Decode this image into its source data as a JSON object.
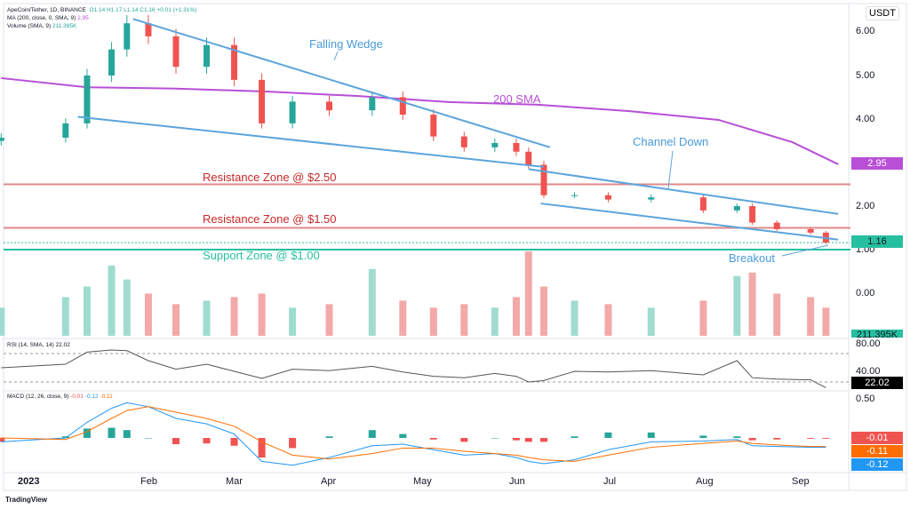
{
  "header": {
    "symbol": "ApeCoin/Tether, 1D, BINANCE",
    "o": "O1.14",
    "h": "H1.17",
    "l": "L1.14",
    "c": "C1.16",
    "chg": "+0.01 (+1.31%)",
    "ma": "MA (200, close, 0, SMA, 9)",
    "ma_val": "2.95",
    "vol": "Volume (SMA, 9)",
    "vol_val": "211.395K",
    "rsi": "RSI (14, SMA, 14)",
    "rsi_val": "22.02",
    "macd": "MACD (12, 26, close, 9)",
    "macd_h": "-0.01",
    "macd_m": "-0.12",
    "macd_s": "-0.11"
  },
  "currency": "USDT",
  "price_axis": [
    "6.00",
    "5.00",
    "4.00",
    "2.00",
    "1.00",
    "0.00"
  ],
  "rsi_axis": [
    "80.00",
    "40.00"
  ],
  "macd_axis": [
    "0.50"
  ],
  "tags": {
    "sma": "2.95",
    "price": "1.16",
    "volume": "211.395K",
    "rsi": "22.02",
    "macd_h": "-0.01",
    "macd_s": "-0.11",
    "macd_m": "-0.12"
  },
  "months": [
    "2023",
    "Feb",
    "Mar",
    "Apr",
    "May",
    "Jun",
    "Jul",
    "Aug",
    "Sep"
  ],
  "annotations": {
    "wedge": "Falling Wedge",
    "sma": "200 SMA",
    "channel": "Channel Down",
    "res250": "Resistance Zone @ $2.50",
    "res150": "Resistance Zone @ $1.50",
    "sup100": "Support Zone @ $1.00",
    "breakout": "Breakout"
  },
  "footer": "TradingView",
  "colors": {
    "up": "#26a69a",
    "down": "#ef5350",
    "sma": "#b84fd6",
    "trend": "#5ba4dc",
    "resistance": "#e08a8a",
    "support": "#26bfa0",
    "macd": "#2196f3",
    "signal": "#ff6d00"
  },
  "chart_data": {
    "type": "candlestick",
    "dates": [
      "2022-12-15",
      "2023-01-05",
      "2023-01-12",
      "2023-01-20",
      "2023-01-25",
      "2023-02-01",
      "2023-02-10",
      "2023-02-20",
      "2023-03-01",
      "2023-03-10",
      "2023-03-20",
      "2023-04-01",
      "2023-04-15",
      "2023-04-25",
      "2023-05-05",
      "2023-05-15",
      "2023-05-25",
      "2023-06-01",
      "2023-06-05",
      "2023-06-10",
      "2023-06-20",
      "2023-07-01",
      "2023-07-15",
      "2023-08-01",
      "2023-08-12",
      "2023-08-17",
      "2023-08-25",
      "2023-09-05",
      "2023-09-10"
    ],
    "close": [
      3.57,
      3.9,
      5.0,
      5.6,
      6.2,
      5.9,
      5.2,
      5.7,
      4.9,
      3.9,
      4.4,
      4.2,
      4.5,
      4.1,
      3.6,
      3.35,
      3.45,
      3.25,
      2.95,
      2.25,
      2.25,
      2.15,
      2.2,
      1.9,
      2.0,
      1.62,
      1.47,
      1.39,
      1.16
    ],
    "volume": [
      40,
      55,
      70,
      100,
      80,
      60,
      45,
      50,
      55,
      60,
      40,
      45,
      95,
      50,
      40,
      45,
      40,
      55,
      120,
      70,
      50,
      45,
      40,
      50,
      85,
      90,
      60,
      55,
      40
    ],
    "rsi": [
      50,
      55,
      72,
      75,
      74,
      60,
      48,
      55,
      45,
      35,
      48,
      46,
      52,
      44,
      38,
      36,
      42,
      38,
      30,
      32,
      45,
      44,
      46,
      40,
      60,
      36,
      34,
      33,
      22
    ],
    "macd": [
      -0.05,
      0.0,
      0.2,
      0.38,
      0.45,
      0.4,
      0.25,
      0.18,
      0.05,
      -0.3,
      -0.35,
      -0.25,
      -0.1,
      -0.08,
      -0.15,
      -0.22,
      -0.2,
      -0.25,
      -0.3,
      -0.33,
      -0.28,
      -0.15,
      -0.05,
      -0.04,
      -0.02,
      -0.1,
      -0.11,
      -0.12,
      -0.12
    ],
    "signal": [
      0.0,
      -0.02,
      0.08,
      0.25,
      0.35,
      0.4,
      0.33,
      0.25,
      0.15,
      -0.05,
      -0.22,
      -0.27,
      -0.2,
      -0.13,
      -0.13,
      -0.17,
      -0.2,
      -0.22,
      -0.25,
      -0.28,
      -0.3,
      -0.22,
      -0.12,
      -0.07,
      -0.04,
      -0.07,
      -0.09,
      -0.11,
      -0.11
    ],
    "sma200": {
      "dates": [
        "2022-12-15",
        "2023-01-12",
        "2023-02-10",
        "2023-03-12",
        "2023-04-10",
        "2023-05-10",
        "2023-06-08",
        "2023-07-08",
        "2023-08-06",
        "2023-08-30",
        "2023-09-14"
      ],
      "values": [
        4.94,
        4.73,
        4.7,
        4.63,
        4.53,
        4.39,
        4.33,
        4.18,
        3.98,
        3.47,
        2.96
      ]
    },
    "trendlines": [
      {
        "name": "Falling Wedge",
        "from": [
          "2023-01-27",
          6.3
        ],
        "to": [
          "2023-06-12",
          3.35
        ]
      },
      {
        "from": [
          "2023-01-09",
          4.05
        ],
        "to": [
          "2023-06-10",
          2.9
        ]
      },
      {
        "name": "Channel Down",
        "from": [
          "2023-06-05",
          2.85
        ],
        "to": [
          "2023-09-14",
          1.82
        ]
      },
      {
        "from": [
          "2023-06-09",
          2.06
        ],
        "to": [
          "2023-09-14",
          1.23
        ]
      }
    ],
    "zones": {
      "resistance": [
        2.5,
        1.5
      ],
      "support": [
        1.0
      ]
    },
    "current_price": 1.16,
    "rsi_levels": [
      70,
      30
    ]
  }
}
